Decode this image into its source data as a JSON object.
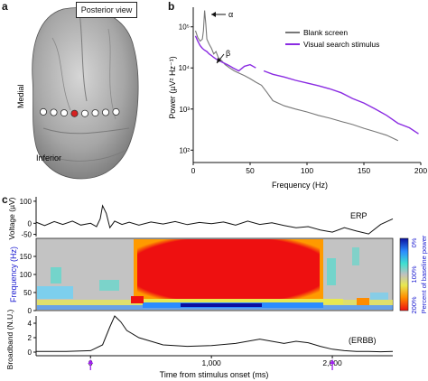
{
  "panels": {
    "a": "a",
    "b": "b",
    "c": "c"
  },
  "panel_a": {
    "view_label": "Posterior view",
    "medial_label": "Medial",
    "inferior_label": "Inferior",
    "electrode_count": 8,
    "highlight_electrode_index": 3,
    "colors": {
      "electrode": "#ffffff",
      "highlight": "#d62020",
      "brain": "#a8a8a8"
    }
  },
  "chart_data": [
    {
      "type": "line",
      "panel": "b",
      "xlabel": "Frequency (Hz)",
      "ylabel": "Power (µV² Hz⁻¹)",
      "xlim": [
        0,
        200
      ],
      "xticks": [
        0,
        50,
        100,
        150,
        200
      ],
      "ylim": [
        50,
        300000
      ],
      "yscale": "log",
      "yticks": [
        100,
        1000,
        10000,
        100000
      ],
      "ytick_labels": [
        "10²",
        "10³",
        "10⁴",
        "10⁵"
      ],
      "legend_position": "top-right",
      "annotations": [
        {
          "label": "α",
          "x": 10,
          "y": 200000
        },
        {
          "label": "β",
          "x": 20,
          "y": 25000
        }
      ],
      "series": [
        {
          "name": "Blank screen",
          "color": "#777777",
          "x": [
            2,
            4,
            6,
            8,
            9,
            10,
            11,
            12,
            14,
            16,
            18,
            20,
            22,
            25,
            28,
            32,
            36,
            40,
            45,
            50,
            55,
            60,
            65,
            70,
            80,
            90,
            100,
            110,
            120,
            130,
            140,
            150,
            160,
            170,
            180
          ],
          "y": [
            80000,
            55000,
            45000,
            50000,
            80000,
            250000,
            120000,
            50000,
            38000,
            30000,
            22000,
            25000,
            18000,
            15000,
            12000,
            10000,
            8500,
            7500,
            6500,
            5500,
            4500,
            3800,
            2500,
            1600,
            1200,
            1000,
            850,
            700,
            600,
            500,
            420,
            340,
            280,
            230,
            170
          ]
        },
        {
          "name": "Visual search stimulus",
          "color": "#8a2be2",
          "x": [
            2,
            4,
            6,
            8,
            10,
            12,
            14,
            16,
            18,
            20,
            25,
            30,
            35,
            40,
            45,
            50,
            55,
            62,
            70,
            80,
            90,
            100,
            110,
            120,
            130,
            140,
            150,
            160,
            170,
            180,
            190,
            198
          ],
          "y": [
            60000,
            45000,
            35000,
            30000,
            27000,
            25000,
            22000,
            20000,
            18000,
            16500,
            14000,
            12000,
            10000,
            8500,
            11000,
            12000,
            10000,
            8500,
            7000,
            6000,
            5000,
            4300,
            3700,
            3100,
            2500,
            1800,
            1400,
            1000,
            700,
            450,
            350,
            250
          ]
        }
      ]
    },
    {
      "type": "line",
      "panel": "c-erp",
      "ylabel": "Voltage (µV)",
      "xlim": [
        -450,
        2500
      ],
      "ylim": [
        -60,
        120
      ],
      "yticks": [
        100,
        0,
        -50
      ],
      "series": [
        {
          "name": "ERP",
          "color": "#111111",
          "x": [
            -450,
            -380,
            -300,
            -230,
            -150,
            -80,
            0,
            50,
            80,
            100,
            130,
            160,
            200,
            260,
            320,
            400,
            500,
            600,
            700,
            800,
            900,
            1000,
            1100,
            1200,
            1300,
            1400,
            1500,
            1600,
            1700,
            1800,
            1900,
            2000,
            2100,
            2200,
            2300,
            2400,
            2500
          ],
          "y": [
            5,
            -10,
            8,
            -5,
            10,
            -8,
            0,
            -15,
            20,
            80,
            45,
            -20,
            10,
            -5,
            5,
            -8,
            6,
            -3,
            8,
            -6,
            4,
            -2,
            6,
            -8,
            10,
            -5,
            2,
            -10,
            -20,
            -15,
            -30,
            -40,
            -20,
            -35,
            -48,
            -5,
            20
          ]
        }
      ]
    },
    {
      "type": "heatmap",
      "panel": "c-spectrogram",
      "ylabel": "Frequency (Hz)",
      "yticks": [
        0,
        50,
        100,
        150
      ],
      "ylim": [
        0,
        200
      ],
      "colorbar": {
        "label": "Percent of baseline power",
        "ticks": [
          "0%",
          "100%",
          "200%"
        ],
        "colors": [
          "#0a10a0",
          "#2b8cff",
          "#3fe0d0",
          "#c0c0c0",
          "#e8e850",
          "#ff8c00",
          "#ee1010"
        ]
      }
    },
    {
      "type": "line",
      "panel": "c-broadband",
      "ylabel": "Broadband (N.U.)",
      "xlabel": "Time from stimulus onset (ms)",
      "xlim": [
        -450,
        2500
      ],
      "xticks": [
        0,
        1000,
        2000
      ],
      "xtick_labels": [
        "0",
        "1,000",
        "2,000"
      ],
      "ylim": [
        -0.5,
        5
      ],
      "yticks": [
        0,
        2,
        4
      ],
      "series": [
        {
          "name": "ERBB",
          "color": "#111111",
          "x": [
            -450,
            -200,
            0,
            100,
            160,
            200,
            250,
            300,
            400,
            600,
            800,
            1000,
            1200,
            1400,
            1500,
            1600,
            1700,
            1800,
            1900,
            2000,
            2100,
            2200,
            2300,
            2400,
            2500
          ],
          "y": [
            0.1,
            0.1,
            0.2,
            1.0,
            3.5,
            5.0,
            4.2,
            3.0,
            2.0,
            1.0,
            0.8,
            0.9,
            1.2,
            1.8,
            1.5,
            1.2,
            1.5,
            1.3,
            0.8,
            0.4,
            0.2,
            0.1,
            0.1,
            0.05,
            0.1
          ]
        }
      ]
    }
  ],
  "panel_c": {
    "erp_label": "ERP",
    "erbb_label": "(ERBB)",
    "arrow_color": "#a020f0",
    "arrow_times": [
      0,
      2000
    ]
  }
}
